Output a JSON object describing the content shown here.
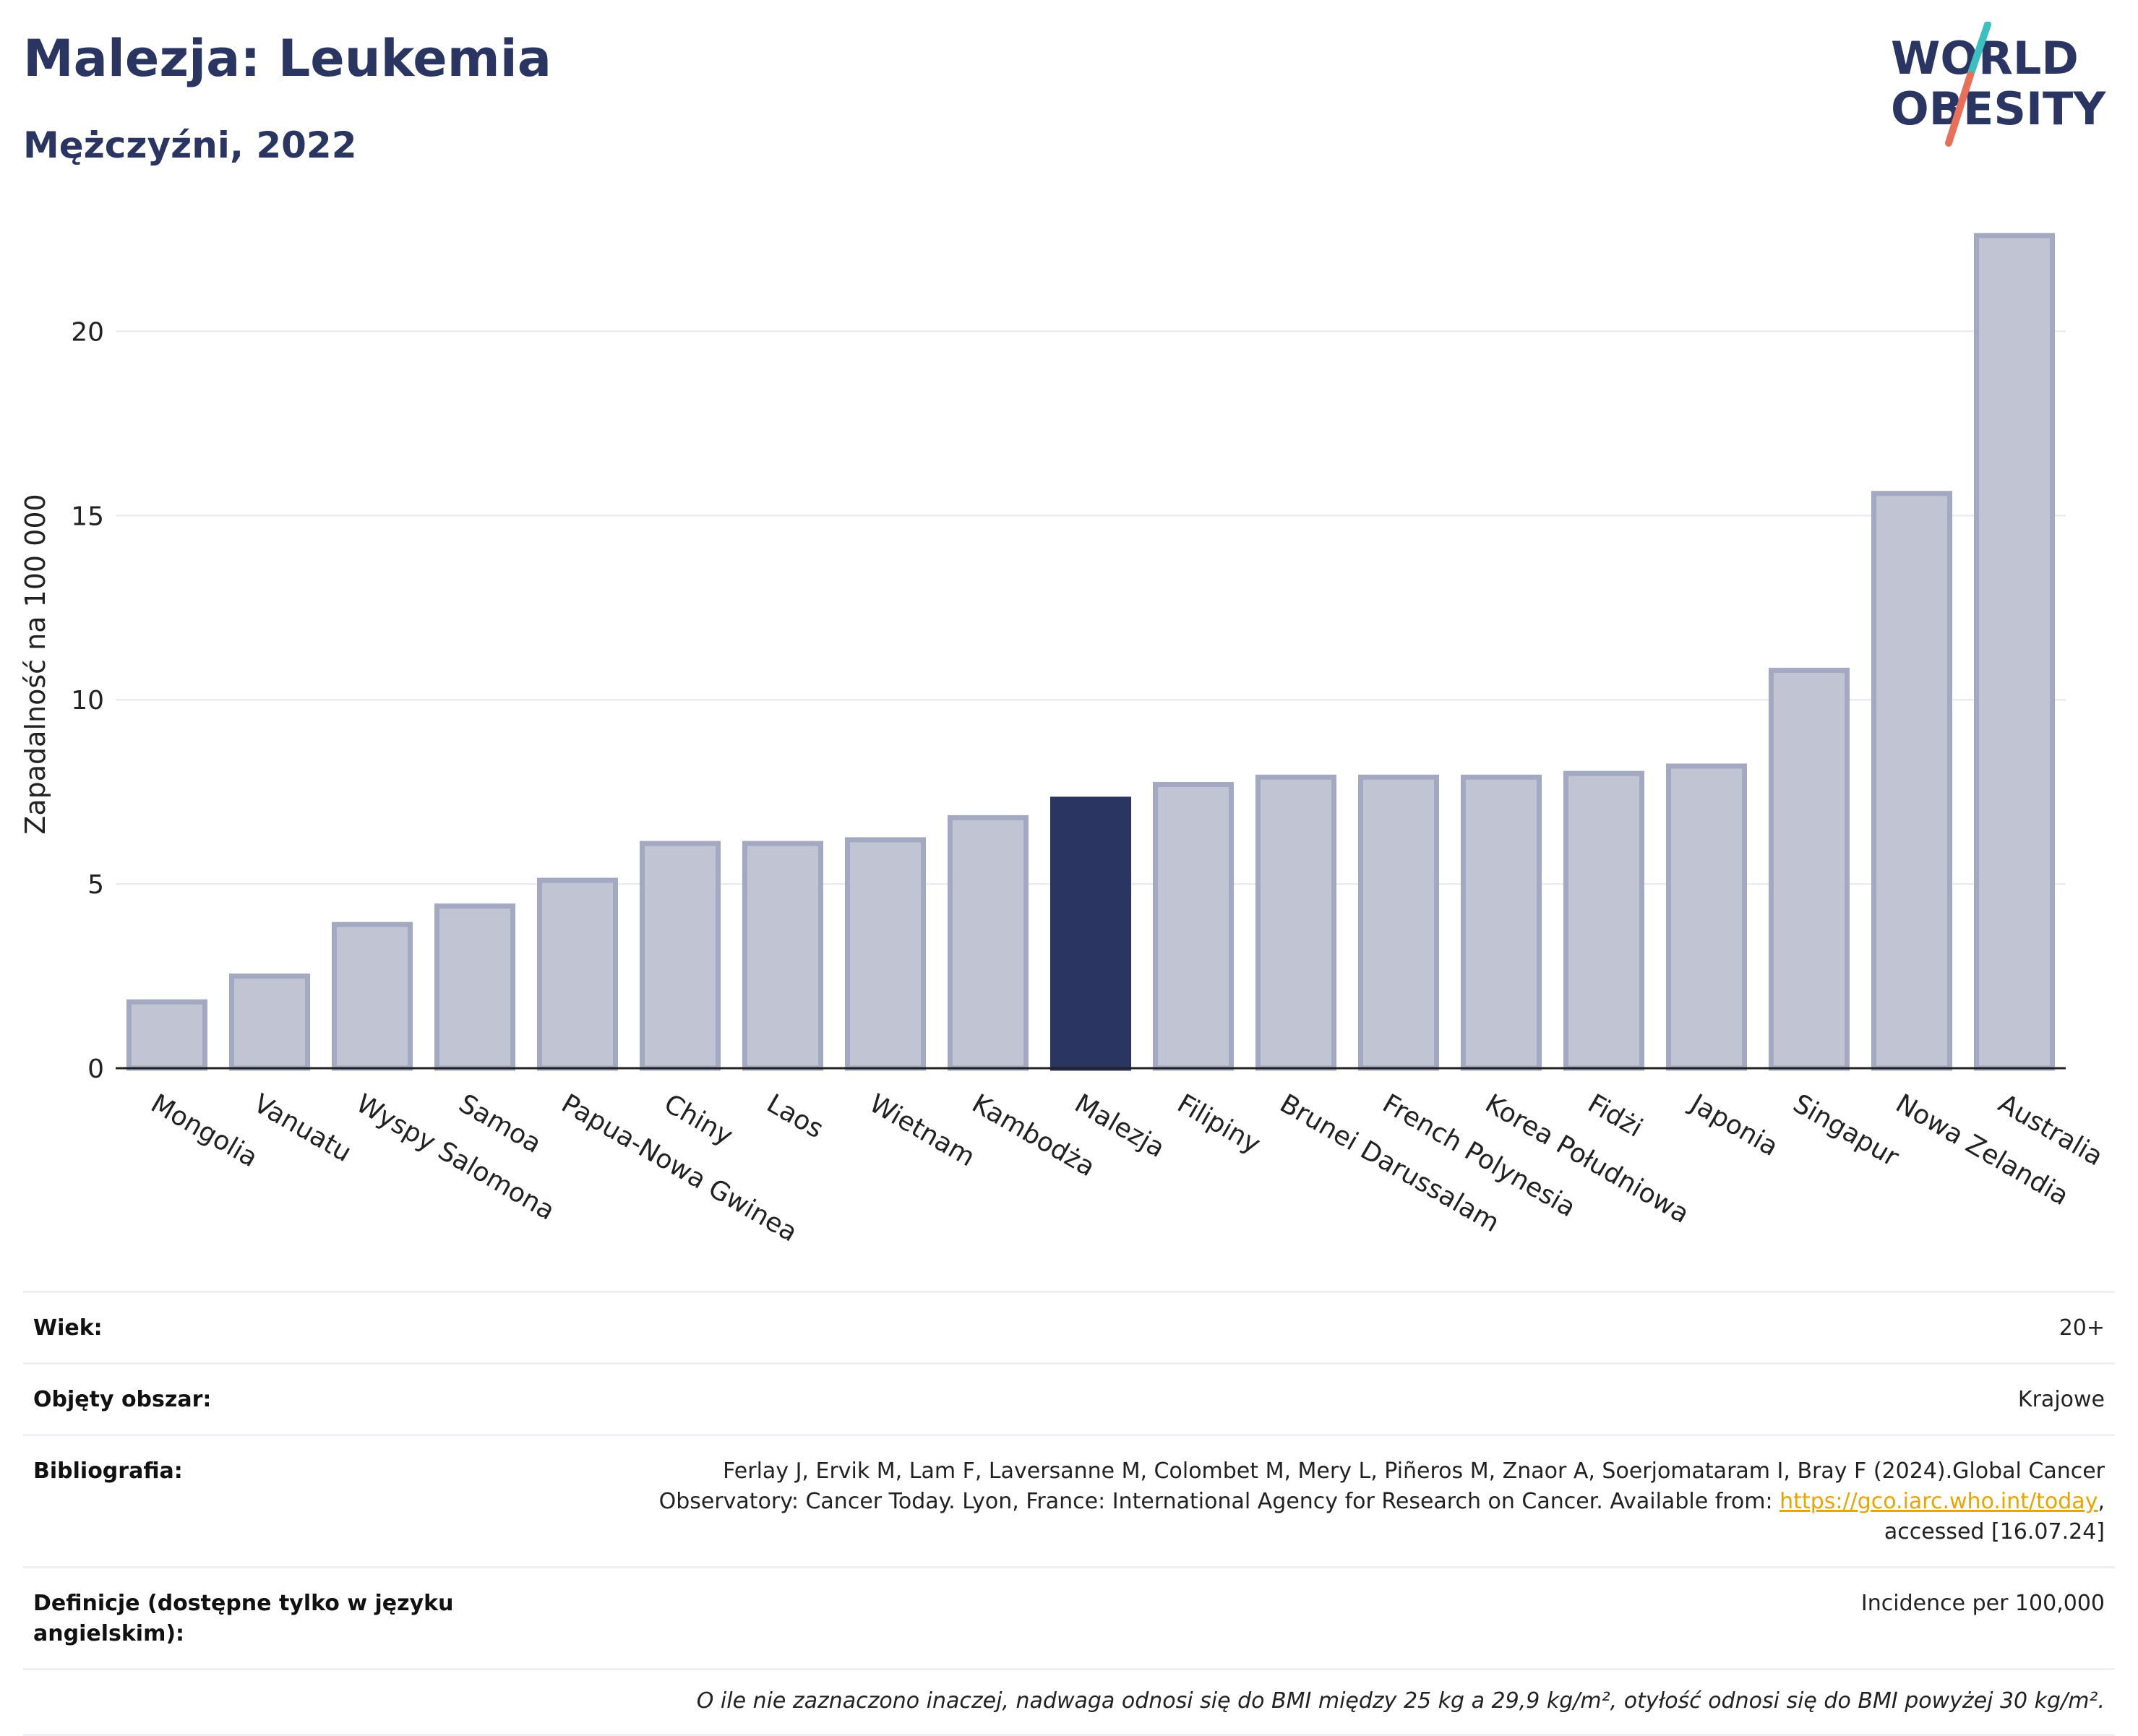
{
  "header": {
    "title": "Malezja: Leukemia",
    "subtitle": "Mężczyźni, 2022"
  },
  "logo": {
    "line1": "WORLD",
    "line2": "OBESITY",
    "colors": {
      "text": "#2b3562",
      "slash_teal": "#3bbfbf",
      "slash_coral": "#e8705a"
    }
  },
  "colors": {
    "bar": "#c0c4d3",
    "bar_border": "#a3a9c0",
    "highlight": "#2b3562",
    "grid": "#e6e8ee",
    "axis": "#222222"
  },
  "chart_data": {
    "type": "bar",
    "title": "Malezja: Leukemia",
    "subtitle": "Mężczyźni, 2022",
    "xlabel": "",
    "ylabel": "Zapadalność na 100 000",
    "ylim": [
      0,
      23.5
    ],
    "yticks": [
      0,
      5,
      10,
      15,
      20
    ],
    "grid": true,
    "highlight": "Malezja",
    "categories": [
      "Mongolia",
      "Vanuatu",
      "Wyspy Salomona",
      "Samoa",
      "Papua-Nowa Gwinea",
      "Chiny",
      "Laos",
      "Wietnam",
      "Kambodża",
      "Malezja",
      "Filipiny",
      "Brunei Darussalam",
      "French Polynesia",
      "Korea Południowa",
      "Fidżi",
      "Japonia",
      "Singapur",
      "Nowa Zelandia",
      "Australia"
    ],
    "values": [
      1.8,
      2.5,
      3.9,
      4.4,
      5.1,
      6.1,
      6.1,
      6.2,
      6.8,
      7.3,
      7.7,
      7.9,
      7.9,
      7.9,
      8.0,
      8.2,
      10.8,
      15.6,
      22.6
    ]
  },
  "meta": {
    "rows": [
      {
        "label": "Wiek:",
        "value": "20+"
      },
      {
        "label": "Objęty obszar:",
        "value": "Krajowe"
      },
      {
        "label": "Bibliografia:",
        "value_line1": "Ferlay J, Ervik M, Lam F, Laversanne M, Colombet M, Mery L, Piñeros M, Znaor A, Soerjomataram I, Bray F (2024).Global Cancer",
        "value_line2_pre": "Observatory: Cancer Today. Lyon, France: International Agency for Research on Cancer. Available from: ",
        "value_link": "https://gco.iarc.who.int/today",
        "value_line2_post": ",",
        "value_line3": "accessed [16.07.24]"
      },
      {
        "label": "Definicje (dostępne tylko w języku angielskim):",
        "value": "Incidence per 100,000"
      }
    ],
    "note": "O ile nie zaznaczono inaczej, nadwaga odnosi się do BMI między 25 kg a 29,9 kg/m², otyłość odnosi się do BMI powyżej 30 kg/m²."
  }
}
